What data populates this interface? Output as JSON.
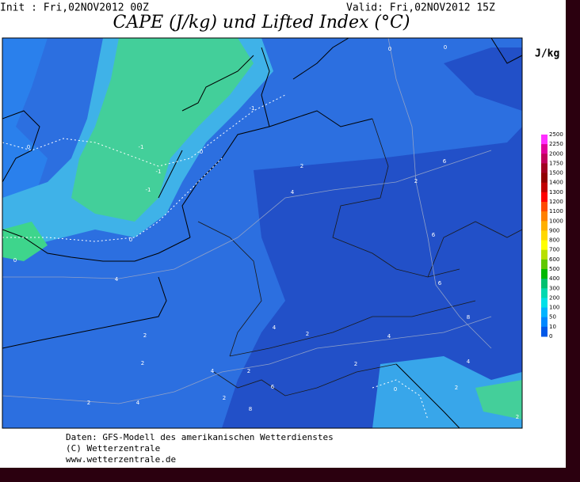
{
  "header": {
    "init": "Init : Fri,02NOV2012 00Z",
    "valid": "Valid: Fri,02NOV2012 15Z",
    "title": "CAPE (J/kg) und Lifted Index (°C)"
  },
  "legend": {
    "unit": "J/kg",
    "labels": [
      2500,
      2250,
      2000,
      1750,
      1500,
      1400,
      1300,
      1200,
      1100,
      1000,
      900,
      800,
      700,
      600,
      500,
      400,
      300,
      200,
      100,
      50,
      10,
      0
    ],
    "colors": [
      "#ff30ff",
      "#e0009a",
      "#c0005a",
      "#a00020",
      "#900000",
      "#c00000",
      "#ff0000",
      "#ff4a00",
      "#ff8000",
      "#ffb000",
      "#ffd800",
      "#ffff00",
      "#b8e000",
      "#60c800",
      "#00b800",
      "#00c070",
      "#00d8b0",
      "#00e0e8",
      "#00b4ff",
      "#0088ff",
      "#0058e8"
    ]
  },
  "contour_labels": [
    0,
    0,
    -1,
    -1,
    0,
    -1,
    0,
    -1,
    0,
    2,
    4,
    2,
    6,
    0,
    4,
    6,
    6,
    8,
    2,
    4,
    2,
    4,
    2,
    4,
    2,
    2,
    6,
    2,
    4,
    2,
    8,
    0,
    4,
    2,
    2
  ],
  "footer": [
    "Daten: GFS-Modell des amerikanischen Wetterdienstes",
    "(C) Wetterzentrale",
    "www.wetterzentrale.de"
  ]
}
